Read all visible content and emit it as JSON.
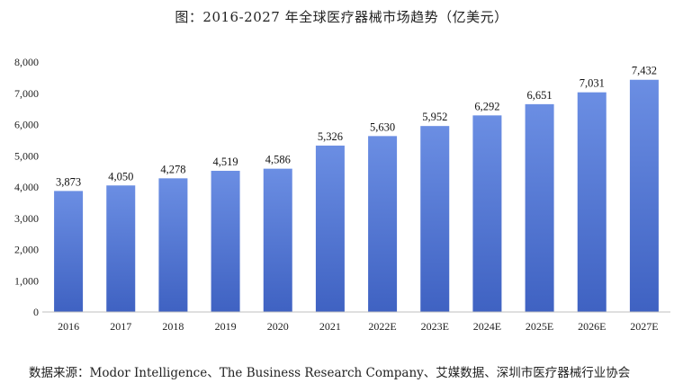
{
  "title": "图：2016-2027 年全球医疗器械市场趋势（亿美元）",
  "source": "数据来源：Modor Intelligence、The Business Research Company、艾媒数据、深圳市医疗器械行业协会",
  "colors": {
    "bar_top": "#6b8ee3",
    "bar_bottom": "#3f62c2",
    "axis": "#bfbfbf"
  },
  "chart_data": {
    "type": "bar",
    "categories": [
      "2016",
      "2017",
      "2018",
      "2019",
      "2020",
      "2021",
      "2022E",
      "2023E",
      "2024E",
      "2025E",
      "2026E",
      "2027E"
    ],
    "values": [
      3873,
      4050,
      4278,
      4519,
      4586,
      5326,
      5630,
      5952,
      6292,
      6651,
      7031,
      7432
    ],
    "data_labels": [
      "3,873",
      "4,050",
      "4,278",
      "4,519",
      "4,586",
      "5,326",
      "5,630",
      "5,952",
      "6,292",
      "6,651",
      "7,031",
      "7,432"
    ],
    "yticks": [
      "0",
      "1,000",
      "2,000",
      "3,000",
      "4,000",
      "5,000",
      "6,000",
      "7,000",
      "8,000"
    ],
    "ylim": [
      0,
      8000
    ],
    "grid": false,
    "legend": "none"
  }
}
